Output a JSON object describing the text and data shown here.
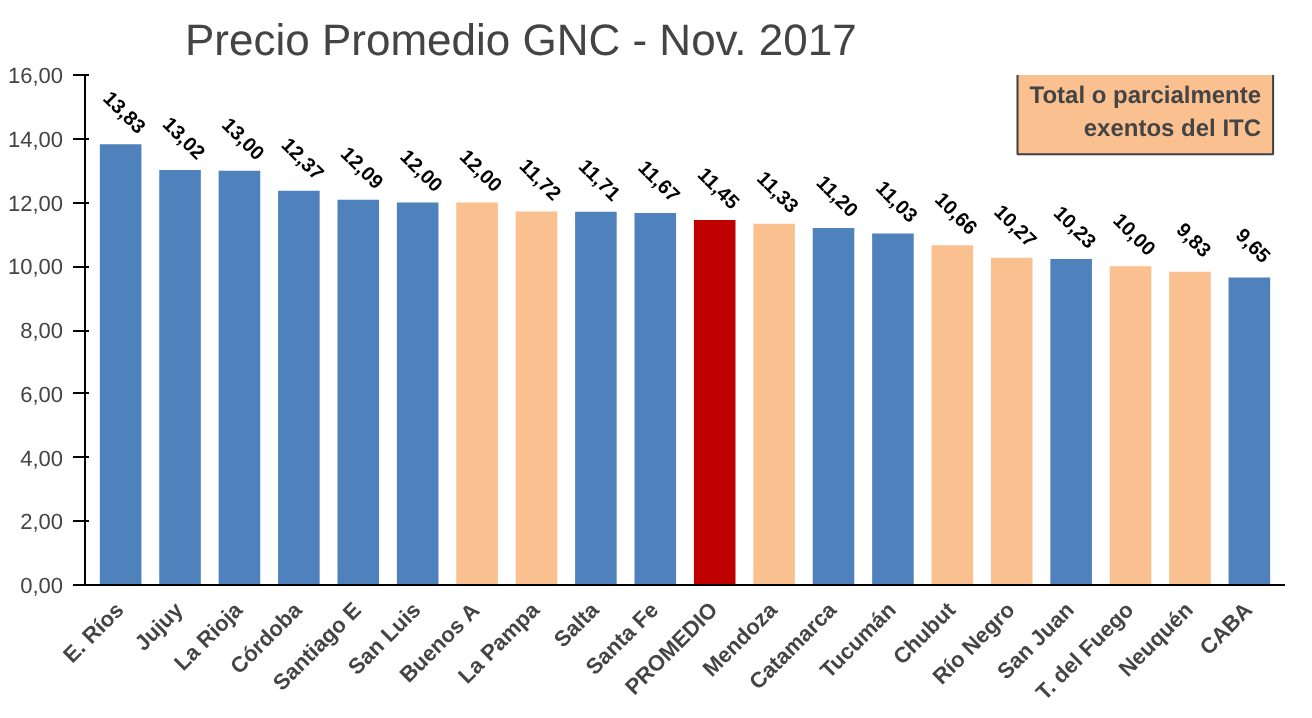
{
  "chart_data": {
    "type": "bar",
    "title": "Precio Promedio GNC  - Nov. 2017",
    "categories": [
      "E. Ríos",
      "Jujuy",
      "La Rioja",
      "Córdoba",
      "Santiago E",
      "San Luis",
      "Buenos A",
      "La Pampa",
      "Salta",
      "Santa Fe",
      "PROMEDIO",
      "Mendoza",
      "Catamarca",
      "Tucumán",
      "Chubut",
      "Río Negro",
      "San Juan",
      "T. del Fuego",
      "Neuquén",
      "CABA"
    ],
    "values": [
      13.83,
      13.02,
      13.0,
      12.37,
      12.09,
      12.0,
      12.0,
      11.72,
      11.71,
      11.67,
      11.45,
      11.33,
      11.2,
      11.03,
      10.66,
      10.27,
      10.23,
      10.0,
      9.83,
      9.65
    ],
    "value_labels": [
      "13,83",
      "13,02",
      "13,00",
      "12,37",
      "12,09",
      "12,00",
      "12,00",
      "11,72",
      "11,71",
      "11,67",
      "11,45",
      "11,33",
      "11,20",
      "11,03",
      "10,66",
      "10,27",
      "10,23",
      "10,00",
      "9,83",
      "9,65"
    ],
    "colors": [
      "#4f81bd",
      "#4f81bd",
      "#4f81bd",
      "#4f81bd",
      "#4f81bd",
      "#4f81bd",
      "#fac090",
      "#fac090",
      "#4f81bd",
      "#4f81bd",
      "#c00000",
      "#fac090",
      "#4f81bd",
      "#4f81bd",
      "#fac090",
      "#fac090",
      "#4f81bd",
      "#fac090",
      "#fac090",
      "#4f81bd"
    ],
    "ylim": [
      0,
      16
    ],
    "yticks": [
      {
        "value": 0,
        "label": "0,00"
      },
      {
        "value": 2,
        "label": "2,00"
      },
      {
        "value": 4,
        "label": "4,00"
      },
      {
        "value": 6,
        "label": "6,00"
      },
      {
        "value": 8,
        "label": "8,00"
      },
      {
        "value": 10,
        "label": "10,00"
      },
      {
        "value": 12,
        "label": "12,00"
      },
      {
        "value": 14,
        "label": "14,00"
      },
      {
        "value": 16,
        "label": "16,00"
      }
    ],
    "annotations": [
      "Total o parcialmente exentos del ITC"
    ],
    "grid": false
  }
}
